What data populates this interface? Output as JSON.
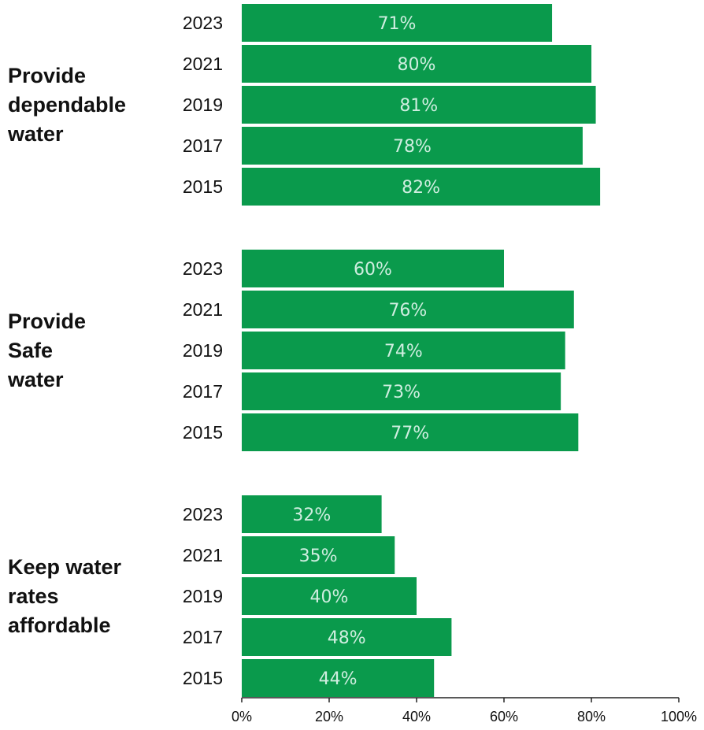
{
  "chart_data": {
    "type": "bar",
    "orientation": "horizontal",
    "title": "",
    "xlabel": "",
    "ylabel": "",
    "xlim": [
      0,
      100
    ],
    "x_ticks": [
      "0%",
      "20%",
      "40%",
      "60%",
      "80%",
      "100%"
    ],
    "bar_color": "#0a9a4c",
    "label_color": "#cfeee0",
    "grid": false,
    "groups": [
      {
        "name": "Provide dependable water",
        "name_lines": [
          "Provide",
          "dependable",
          "water"
        ],
        "categories": [
          "2023",
          "2021",
          "2019",
          "2017",
          "2015"
        ],
        "values": [
          71,
          80,
          81,
          78,
          82
        ],
        "data_labels": [
          "71%",
          "80%",
          "81%",
          "78%",
          "82%"
        ]
      },
      {
        "name": "Provide Safe water",
        "name_lines": [
          "Provide",
          "Safe",
          "water"
        ],
        "categories": [
          "2023",
          "2021",
          "2019",
          "2017",
          "2015"
        ],
        "values": [
          60,
          76,
          74,
          73,
          77
        ],
        "data_labels": [
          "60%",
          "76%",
          "74%",
          "73%",
          "77%"
        ]
      },
      {
        "name": "Keep water rates affordable",
        "name_lines": [
          "Keep water",
          "rates",
          "affordable"
        ],
        "categories": [
          "2023",
          "2021",
          "2019",
          "2017",
          "2015"
        ],
        "values": [
          32,
          35,
          40,
          48,
          44
        ],
        "data_labels": [
          "32%",
          "35%",
          "40%",
          "48%",
          "44%"
        ]
      }
    ]
  }
}
